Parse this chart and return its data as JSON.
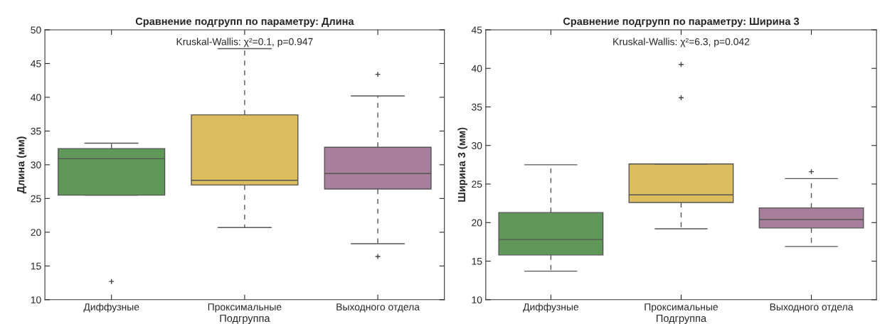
{
  "chart_data": [
    {
      "type": "box",
      "title": "Сравнение подгрупп по параметру: Длина",
      "xlabel": "Подгруппа",
      "ylabel": "Длина (мм)",
      "annotations": [
        "Kruskal-Wallis: χ²=0.1, p=0.947"
      ],
      "categories": [
        "Диффузные",
        "Проксимальные",
        "Выходного отдела"
      ],
      "colors": [
        "#5f9858",
        "#dcbd5e",
        "#a77f9c"
      ],
      "boxes": [
        {
          "low": 25.5,
          "q1": 25.5,
          "median": 30.9,
          "q3": 32.4,
          "high": 33.2,
          "outliers": [
            12.7
          ]
        },
        {
          "low": 20.7,
          "q1": 27.0,
          "median": 27.7,
          "q3": 37.4,
          "high": 47.2
        },
        {
          "low": 18.3,
          "q1": 26.4,
          "median": 28.7,
          "q3": 32.6,
          "high": 40.2,
          "outliers": [
            43.4,
            16.4
          ]
        }
      ],
      "ylim": [
        10,
        50
      ],
      "yticks": [
        10,
        15,
        20,
        25,
        30,
        35,
        40,
        45,
        50
      ],
      "grid": false,
      "marker": "cross",
      "line_style": "dashed"
    },
    {
      "type": "box",
      "title": "Сравнение подгрупп по параметру: Ширина 3",
      "xlabel": "Подгруппа",
      "ylabel": "Ширина 3 (мм)",
      "annotations": [
        "Kruskal-Wallis: χ²=6.3, p=0.042"
      ],
      "categories": [
        "Диффузные",
        "Проксимальные",
        "Выходного отдела"
      ],
      "colors": [
        "#5f9858",
        "#dcbd5e",
        "#a77f9c"
      ],
      "boxes": [
        {
          "low": 13.7,
          "q1": 15.8,
          "median": 17.8,
          "q3": 21.3,
          "high": 27.5
        },
        {
          "low": 19.2,
          "q1": 22.6,
          "median": 23.6,
          "q3": 27.6,
          "high": 27.6,
          "outliers": [
            40.5,
            36.2
          ]
        },
        {
          "low": 16.9,
          "q1": 19.3,
          "median": 20.4,
          "q3": 21.9,
          "high": 25.7,
          "outliers": [
            26.6
          ]
        }
      ],
      "ylim": [
        10,
        45
      ],
      "yticks": [
        10,
        15,
        20,
        25,
        30,
        35,
        40,
        45
      ],
      "grid": false,
      "marker": "cross",
      "line_style": "dashed"
    }
  ]
}
